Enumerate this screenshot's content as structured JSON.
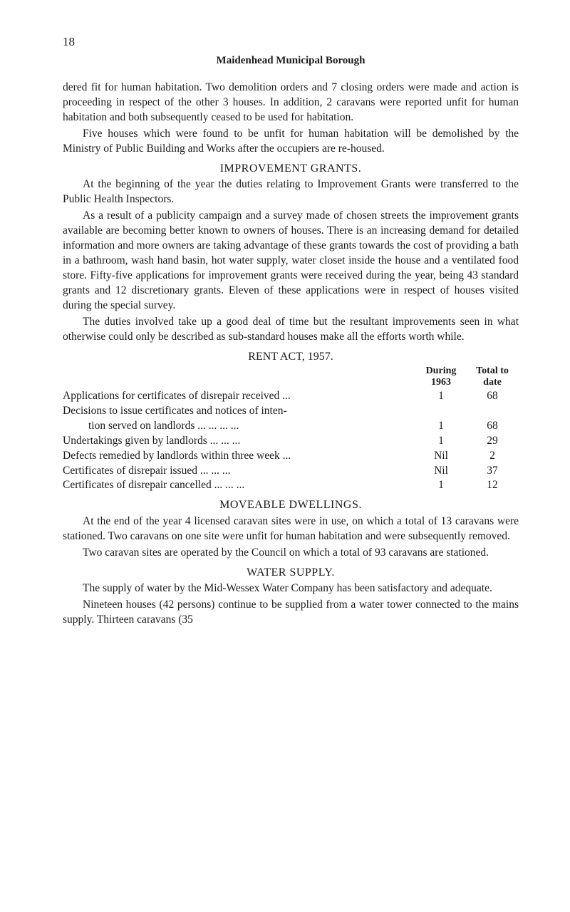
{
  "page_number": "18",
  "running_head": "Maidenhead Municipal Borough",
  "para1": "dered fit for human habitation. Two demolition orders and 7 closing orders were made and action is proceeding in respect of the other 3 houses. In addition, 2 caravans were reported unfit for human habitation and both subsequently ceased to be used for habitation.",
  "para2": "Five houses which were found to be unfit for human habitation will be demolished by the Ministry of Public Building and Works after the occupiers are re-housed.",
  "section_improvement": "IMPROVEMENT GRANTS.",
  "para3": "At the beginning of the year the duties relating to Improve­ment Grants were transferred to the Public Health Inspectors.",
  "para4": "As a result of a publicity campaign and a survey made of chosen streets the improvement grants available are becoming better known to owners of houses. There is an increasing demand for detailed information and more owners are taking advantage of these grants towards the cost of providing a bath in a bathroom, wash hand basin, hot water supply, water closet inside the house and a ventilated food store. Fifty-five applications for improve­ment grants were received during the year, being 43 standard grants and 12 discretionary grants. Eleven of these applications were in respect of houses visited during the special survey.",
  "para5": "The duties involved take up a good deal of time but the result­ant improvements seen in what otherwise could only be described as sub-standard houses make all the efforts worth while.",
  "rent_head": "RENT ACT, 1957.",
  "rent_table": {
    "col1_head_line1": "During",
    "col1_head_line2": "1963",
    "col2_head_line1": "Total to",
    "col2_head_line2": "date",
    "rows": [
      {
        "label": "Applications for certificates of disrepair received ...",
        "c1": "1",
        "c2": "68",
        "indent": false
      },
      {
        "label": "Decisions to issue certificates and notices of inten-",
        "c1": "",
        "c2": "",
        "indent": false
      },
      {
        "label": "tion served on landlords   ...     ...     ...     ...",
        "c1": "1",
        "c2": "68",
        "indent": true
      },
      {
        "label": "Undertakings given by landlords        ...     ...     ...",
        "c1": "1",
        "c2": "29",
        "indent": false
      },
      {
        "label": "Defects remedied by landlords within three week ...",
        "c1": "Nil",
        "c2": "2",
        "indent": false
      },
      {
        "label": "Certificates of disrepair issued           ...     ...     ...",
        "c1": "Nil",
        "c2": "37",
        "indent": false
      },
      {
        "label": "Certificates of disrepair cancelled       ...     ...     ...",
        "c1": "1",
        "c2": "12",
        "indent": false
      }
    ]
  },
  "section_moveable": "MOVEABLE DWELLINGS.",
  "para6": "At the end of the year 4 licensed caravan sites were in use, on which a total of 13 caravans were stationed. Two caravans on one site were unfit for human habitation and were subsequently re­moved.",
  "para7": "Two caravan sites are operated by the Council on which a total of 93 caravans are stationed.",
  "section_water": "WATER SUPPLY.",
  "para8": "The supply of water by the Mid-Wessex Water Company has been satisfactory and adequate.",
  "para9": "Nineteen houses (42 persons) continue to be supplied from a water tower connected to the mains supply. Thirteen caravans (35"
}
